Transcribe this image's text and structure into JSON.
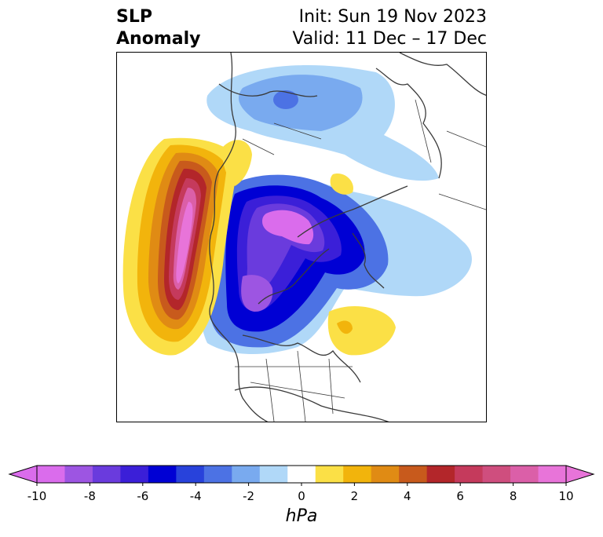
{
  "title": {
    "left_line1": "SLP",
    "left_line2": "Anomaly",
    "right_line1": "Init: Sun 19 Nov 2023",
    "right_line2": "Valid: 11 Dec – 17 Dec"
  },
  "map": {
    "projection": "north-polar-stereographic",
    "features": [
      "positive anomaly maximum over North Pacific (~+10 hPa)",
      "negative anomaly over Arctic / Beaufort (~-8 to -10 hPa)",
      "negative anomaly over western Canada (~-8 hPa)",
      "positive anomaly over NW Europe (~+1 to +2 hPa)",
      "positive anomaly south of Greenland over North Atlantic (~+2 hPa)",
      "weak negative anomaly over Siberia (~-2 to -4 hPa)"
    ]
  },
  "colorbar": {
    "label": "hPa",
    "ticks": [
      "-10",
      "-8",
      "-6",
      "-4",
      "-2",
      "0",
      "2",
      "4",
      "6",
      "8",
      "10"
    ],
    "levels": [
      -10,
      -9,
      -8,
      -7,
      -6,
      -5,
      -4,
      -3,
      -2,
      -1,
      1,
      2,
      3,
      4,
      5,
      6,
      7,
      8,
      9,
      10
    ],
    "colors": [
      "#da6cec",
      "#9d55e2",
      "#6a3bdd",
      "#3b1fd8",
      "#0000d4",
      "#2842db",
      "#4c72e4",
      "#79aaef",
      "#b0d8f8",
      "#ffffff",
      "#fbe046",
      "#f2b40c",
      "#e08b14",
      "#c85a1c",
      "#b3262a",
      "#c53a5c",
      "#cf4e7e",
      "#db5fa8",
      "#e874d9"
    ],
    "extend": "both"
  }
}
